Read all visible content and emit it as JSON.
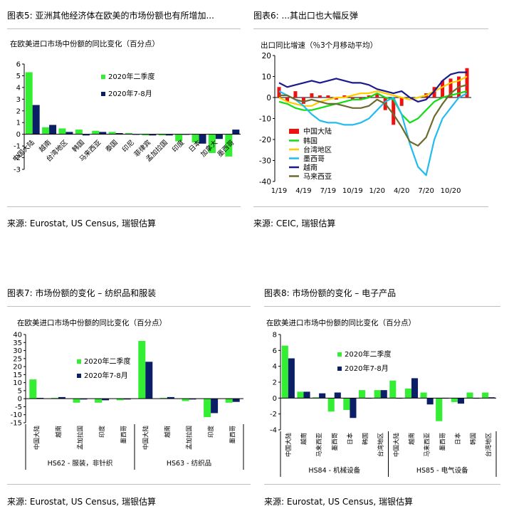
{
  "colors": {
    "green": "#33ee33",
    "navy": "#0b1f66",
    "red": "#ee1111",
    "yellow": "#ffcc00",
    "cyan": "#22bbee",
    "purple": "#1a1a8c",
    "olive": "#6b6b2e",
    "bright_green": "#11dd11"
  },
  "panels": {
    "p5": {
      "title": "图表5: 亚洲其他经济体在欧美的市场份额也有所增加...",
      "subtitle": "在欧美进口市场中份额的同比变化（百分点）",
      "source": "来源: Eurostat, US Census, 瑞银估算"
    },
    "p6": {
      "title": "图表6: ...其出口也大幅反弹",
      "subtitle": "出口同比增速（％3个月移动平均）",
      "source": "来源: CEIC, 瑞银估算"
    },
    "p7": {
      "title": "图表7: 市场份额的变化 – 纺织品和服装",
      "subtitle": "在欧美进口市场中份额的同比变化（百分点）",
      "source": "来源: Eurostat, US Census, 瑞银估算"
    },
    "p8": {
      "title": "图表8: 市场份额的变化 – 电子产品",
      "subtitle": "在欧美进口市场中份额的同比变化（百分点）",
      "source": "来源: Eurostat, US Census, 瑞银估算"
    }
  },
  "chart_data": [
    {
      "id": "p5",
      "type": "bar",
      "categories": [
        "中国大陆",
        "越南",
        "台湾地区",
        "韩国",
        "马来西亚",
        "泰国",
        "印尼",
        "菲律宾",
        "孟加拉国",
        "印度",
        "日本",
        "加拿大",
        "墨西哥"
      ],
      "series": [
        {
          "name": "2020年二季度",
          "values": [
            5.3,
            0.6,
            0.5,
            0.4,
            0.3,
            0.2,
            0.1,
            -0.1,
            -0.1,
            -0.6,
            -0.7,
            -1.6,
            -1.9
          ]
        },
        {
          "name": "2020年7-8月",
          "values": [
            2.5,
            0.8,
            0.2,
            -0.1,
            0.2,
            0.1,
            0.0,
            -0.1,
            -0.1,
            0.0,
            -0.8,
            -0.4,
            0.4
          ]
        }
      ],
      "ylim": [
        -3,
        6
      ],
      "yticks": [
        6,
        5,
        4,
        3,
        2,
        1,
        0,
        -1,
        -2,
        -3
      ],
      "legend_placement": "top-center"
    },
    {
      "id": "p6",
      "type": "line",
      "x": [
        "1/19",
        "2/19",
        "3/19",
        "4/19",
        "5/19",
        "6/19",
        "7/19",
        "8/19",
        "9/19",
        "10/19",
        "11/19",
        "12/19",
        "1/20",
        "2/20",
        "3/20",
        "4/20",
        "5/20",
        "6/20",
        "7/20",
        "8/20",
        "9/20",
        "10/20",
        "11/20",
        "12/20"
      ],
      "xtick_labels": [
        "1/19",
        "4/19",
        "7/19",
        "10/19",
        "1/20",
        "4/20",
        "7/20",
        "10/20"
      ],
      "ylim": [
        -40,
        20
      ],
      "yticks": [
        20,
        10,
        0,
        -10,
        -20,
        -30,
        -40
      ],
      "bar_series": {
        "name": "中国大陆",
        "values": [
          5,
          -2,
          3,
          -3,
          2,
          1,
          1,
          -1,
          1,
          -1,
          -1,
          1,
          2,
          -6,
          -13,
          -4,
          0,
          0,
          2,
          5,
          8,
          9,
          10,
          14
        ]
      },
      "series": [
        {
          "name": "韩国",
          "values": [
            -2,
            -3,
            -5,
            -6,
            -6,
            -5,
            -4,
            -3,
            -2,
            -1,
            -1,
            0,
            2,
            0,
            -1,
            -8,
            -12,
            -10,
            -6,
            -2,
            0,
            1,
            2,
            3
          ]
        },
        {
          "name": "台湾地区",
          "values": [
            0,
            -2,
            -3,
            -4,
            -4,
            -2,
            -1,
            0,
            0,
            1,
            2,
            2,
            3,
            2,
            1,
            0,
            -1,
            0,
            1,
            3,
            5,
            7,
            8,
            10
          ]
        },
        {
          "name": "墨西哥",
          "values": [
            3,
            1,
            -1,
            -4,
            -8,
            -11,
            -12,
            -12,
            -13,
            -13,
            -12,
            -10,
            -6,
            -2,
            0,
            -8,
            -22,
            -33,
            -37,
            -20,
            -10,
            -5,
            0,
            2
          ]
        },
        {
          "name": "越南",
          "values": [
            7,
            5,
            6,
            7,
            8,
            7,
            8,
            9,
            8,
            7,
            7,
            6,
            4,
            3,
            2,
            3,
            0,
            -2,
            -1,
            3,
            8,
            11,
            12,
            12
          ]
        },
        {
          "name": "马来西亚",
          "values": [
            1,
            1,
            -1,
            -2,
            -1,
            -2,
            -3,
            -3,
            -4,
            -5,
            -5,
            -4,
            -1,
            -3,
            -8,
            -14,
            -21,
            -23,
            -19,
            -9,
            -3,
            2,
            5,
            6
          ]
        }
      ],
      "legend_placement": "left-middle"
    },
    {
      "id": "p7",
      "type": "bar",
      "groups": [
        {
          "label": "HS62 - 服装，非针织",
          "categories": [
            "中国大陆",
            "越南",
            "孟加拉国",
            "印度",
            "墨西哥"
          ]
        },
        {
          "label": "HS63 - 纺织品",
          "categories": [
            "中国大陆",
            "越南",
            "孟加拉国",
            "印度",
            "墨西哥"
          ]
        }
      ],
      "series": [
        {
          "name": "2020年二季度",
          "values": [
            12,
            0.5,
            -2.5,
            -2.5,
            -1,
            36,
            0.5,
            -1.5,
            -11.5,
            -2.5
          ]
        },
        {
          "name": "2020年7-8月",
          "values": [
            0.5,
            1,
            -0.5,
            -1,
            -0.5,
            23,
            1,
            -0.5,
            -9,
            -2
          ]
        }
      ],
      "ylim": [
        -15,
        40
      ],
      "yticks": [
        40,
        35,
        30,
        25,
        20,
        15,
        10,
        5,
        0,
        -5,
        -10,
        -15
      ],
      "legend_placement": "top-center"
    },
    {
      "id": "p8",
      "type": "bar",
      "groups": [
        {
          "label": "HS84 - 机械设备",
          "categories": [
            "中国大陆",
            "越南",
            "马来西亚",
            "墨西哥",
            "日本",
            "韩国",
            "台湾地区"
          ]
        },
        {
          "label": "HS85 - 电气设备",
          "categories": [
            "中国大陆",
            "越南",
            "马来西亚",
            "墨西哥",
            "日本",
            "韩国",
            "台湾地区"
          ]
        }
      ],
      "series": [
        {
          "name": "2020年二季度",
          "values": [
            6.6,
            0.8,
            0.1,
            -1.7,
            -1.5,
            1.0,
            1.0,
            2.2,
            1.2,
            0.7,
            -2.9,
            -0.5,
            0.7,
            0.7
          ]
        },
        {
          "name": "2020年7-8月",
          "values": [
            5.0,
            0.8,
            0.6,
            0.7,
            -2.5,
            0.0,
            1.0,
            0.0,
            2.5,
            -0.8,
            0.0,
            -0.7,
            0.0,
            0.1
          ]
        }
      ],
      "ylim": [
        -4,
        8
      ],
      "yticks": [
        8,
        6,
        4,
        2,
        0,
        -2,
        -4
      ],
      "legend_placement": "top-center"
    }
  ]
}
